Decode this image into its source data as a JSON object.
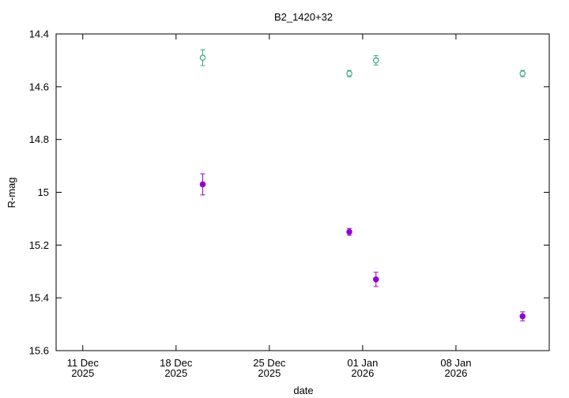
{
  "chart_data": {
    "type": "scatter",
    "title": "B2_1420+32",
    "xlabel": "date",
    "ylabel": "R-mag",
    "y_inverted": true,
    "ylim": [
      14.4,
      15.6
    ],
    "xlim": [
      "2025-12-09",
      "2026-01-15"
    ],
    "grid": false,
    "legend": "none",
    "x_ticks": [
      {
        "value": "2025-12-11",
        "label1": "11 Dec",
        "label2": "2025"
      },
      {
        "value": "2025-12-18",
        "label1": "18 Dec",
        "label2": "2025"
      },
      {
        "value": "2025-12-25",
        "label1": "25 Dec",
        "label2": "2025"
      },
      {
        "value": "2026-01-01",
        "label1": "01 Jan",
        "label2": "2026"
      },
      {
        "value": "2026-01-08",
        "label1": "08 Jan",
        "label2": "2026"
      }
    ],
    "y_ticks": [
      "14.4",
      "14.6",
      "14.8",
      "15",
      "15.2",
      "15.4",
      "15.6"
    ],
    "series": [
      {
        "marker": "open-circle",
        "color": "#3aa882",
        "points": [
          {
            "x": "2025-12-20",
            "y": 14.49,
            "err": 0.03
          },
          {
            "x": "2025-12-31",
            "y": 14.55,
            "err": 0.012
          },
          {
            "x": "2026-01-02",
            "y": 14.5,
            "err": 0.018
          },
          {
            "x": "2026-01-13",
            "y": 14.55,
            "err": 0.012
          }
        ]
      },
      {
        "marker": "filled-circle",
        "color": "#9400d3",
        "points": [
          {
            "x": "2025-12-20",
            "y": 14.97,
            "err": 0.04
          },
          {
            "x": "2025-12-31",
            "y": 15.15,
            "err": 0.013
          },
          {
            "x": "2026-01-02",
            "y": 15.33,
            "err": 0.027
          },
          {
            "x": "2026-01-13",
            "y": 15.47,
            "err": 0.017
          }
        ]
      }
    ]
  }
}
